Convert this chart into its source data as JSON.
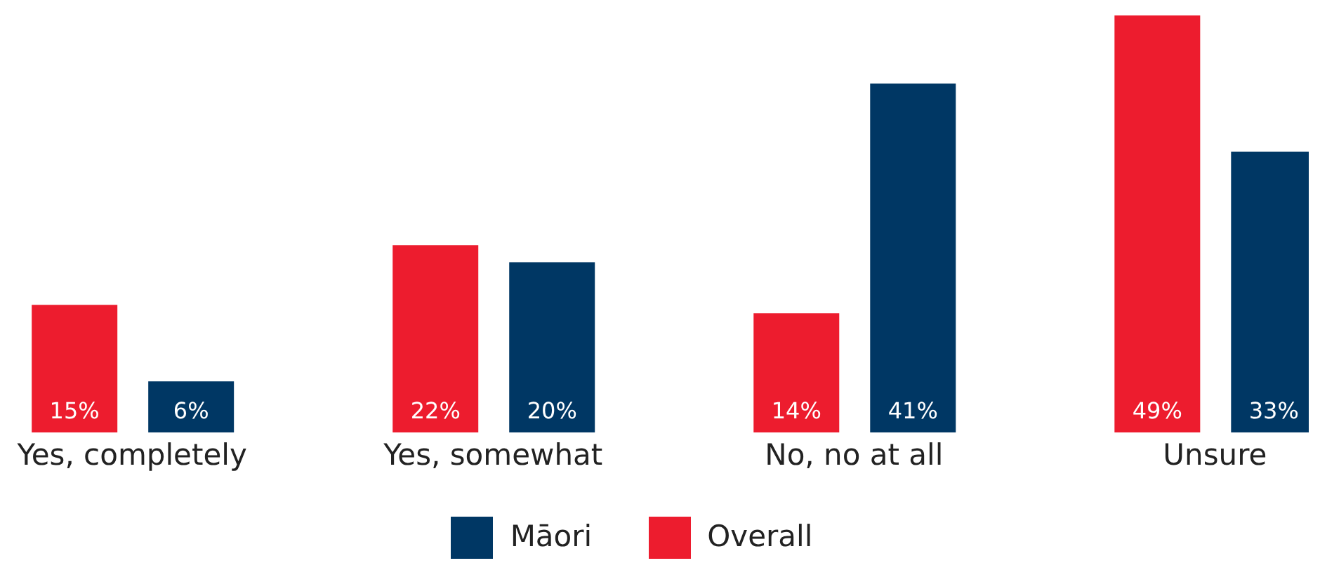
{
  "chart_data": {
    "type": "bar",
    "categories": [
      "Yes, completely",
      "Yes, somewhat",
      "No, no at all",
      "Unsure"
    ],
    "series": [
      {
        "name": "Overall",
        "color": "#ed1c2e",
        "values": [
          15,
          22,
          14,
          49
        ],
        "value_labels": [
          "15%",
          "22%",
          "14%",
          "49%"
        ]
      },
      {
        "name": "Māori",
        "color": "#003764",
        "values": [
          6,
          20,
          41,
          33
        ],
        "value_labels": [
          "6%",
          "20%",
          "41%",
          "33%"
        ]
      }
    ],
    "grid": false,
    "legend": "bottom"
  }
}
